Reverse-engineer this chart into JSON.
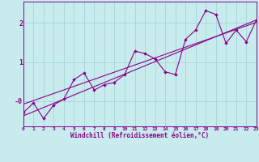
{
  "xlabel": "Windchill (Refroidissement éolien,°C)",
  "bg_color": "#c8ecee",
  "grid_color": "#a8d8dc",
  "line_color": "#880088",
  "scatter_x": [
    0,
    1,
    2,
    3,
    4,
    5,
    6,
    7,
    8,
    9,
    10,
    11,
    12,
    13,
    14,
    15,
    16,
    17,
    18,
    19,
    20,
    21,
    22,
    23
  ],
  "scatter_y": [
    -0.3,
    -0.05,
    -0.45,
    -0.1,
    0.05,
    0.55,
    0.72,
    0.28,
    0.42,
    0.48,
    0.68,
    1.28,
    1.22,
    1.08,
    0.75,
    0.68,
    1.58,
    1.82,
    2.32,
    2.22,
    1.48,
    1.82,
    1.52,
    2.08
  ],
  "line1_x": [
    0,
    23
  ],
  "line1_y": [
    -0.38,
    2.08
  ],
  "line2_x": [
    0,
    23
  ],
  "line2_y": [
    -0.08,
    2.02
  ],
  "xlim": [
    0,
    23
  ],
  "ylim": [
    -0.65,
    2.55
  ],
  "yticks": [
    0.0,
    1.0,
    2.0
  ],
  "ytick_labels": [
    "-0",
    "1",
    "2"
  ],
  "xticks": [
    0,
    1,
    2,
    3,
    4,
    5,
    6,
    7,
    8,
    9,
    10,
    11,
    12,
    13,
    14,
    15,
    16,
    17,
    18,
    19,
    20,
    21,
    22,
    23
  ]
}
